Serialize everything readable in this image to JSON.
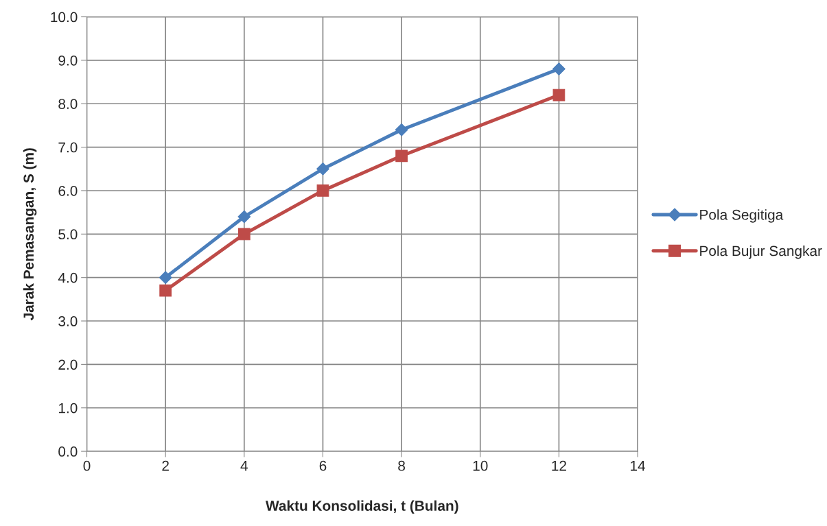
{
  "chart_data": {
    "type": "line",
    "xlabel": "Waktu Konsolidasi, t (Bulan)",
    "ylabel": "Jarak Pemasangan, S (m)",
    "x": [
      2,
      4,
      6,
      8,
      12
    ],
    "series": [
      {
        "name": "Pola Segitiga",
        "color": "#4a7ebb",
        "marker": "diamond",
        "values": [
          4.0,
          5.4,
          6.5,
          7.4,
          8.8
        ]
      },
      {
        "name": "Pola Bujur Sangkar",
        "color": "#be4b48",
        "marker": "square",
        "values": [
          3.7,
          5.0,
          6.0,
          6.8,
          8.2
        ]
      }
    ],
    "xlim": [
      0,
      14
    ],
    "xticks": [
      0,
      2,
      4,
      6,
      8,
      10,
      12,
      14
    ],
    "ylim": [
      0,
      10
    ],
    "yticks": [
      {
        "value": 0,
        "label": "0.0"
      },
      {
        "value": 1,
        "label": "1.0"
      },
      {
        "value": 2,
        "label": "2.0"
      },
      {
        "value": 3,
        "label": "3.0"
      },
      {
        "value": 4,
        "label": "4.0"
      },
      {
        "value": 5,
        "label": "5.0"
      },
      {
        "value": 6,
        "label": "6.0"
      },
      {
        "value": 7,
        "label": "7.0"
      },
      {
        "value": 8,
        "label": "8.0"
      },
      {
        "value": 9,
        "label": "9.0"
      },
      {
        "value": 10,
        "label": "10.0"
      }
    ],
    "grid": true,
    "legend": "right",
    "line_style": "solid"
  }
}
